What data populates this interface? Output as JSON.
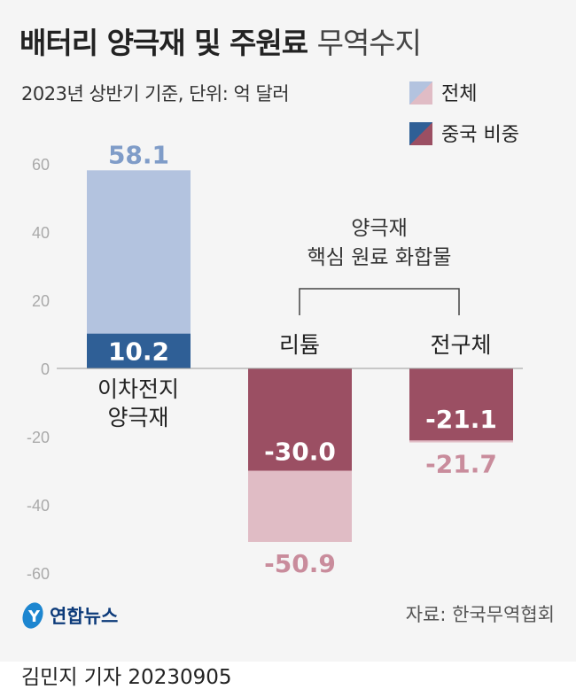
{
  "header": {
    "title_bold": "배터리 양극재 및 주원료",
    "title_light": "무역수지",
    "subtitle": "2023년 상반기 기준, 단위: 억 달러"
  },
  "legend": [
    {
      "label": "전체"
    },
    {
      "label": "중국 비중"
    }
  ],
  "colors": {
    "total_blue": "#b3c3df",
    "china_blue": "#2f5f96",
    "china_red": "#9b4f63",
    "total_red": "#e0bcc5",
    "label_blue": "#7f9cc8",
    "label_red": "#c98c9c"
  },
  "chart_data": {
    "type": "bar",
    "categories": [
      "이차전지\n양극재",
      "리튬",
      "전구체"
    ],
    "series": [
      {
        "name": "전체",
        "values": [
          58.1,
          -50.9,
          -21.7
        ]
      },
      {
        "name": "중국 비중",
        "values": [
          10.2,
          -30.0,
          -21.1
        ]
      }
    ],
    "data_labels": {
      "total": [
        "58.1",
        "-50.9",
        "-21.7"
      ],
      "china": [
        "10.2",
        "-30.0",
        "-21.1"
      ]
    },
    "group_annotation": [
      "양극재",
      "핵심 원료 화합물"
    ],
    "yticks": [
      "60",
      "40",
      "20",
      "0",
      "-20",
      "-40",
      "-60"
    ],
    "ylim": [
      -60,
      60
    ],
    "grid": false,
    "legend_position": "top-right"
  },
  "footer": {
    "logo": "연합뉴스",
    "source": "자료: 한국무역협회",
    "byline": "김민지 기자  20230905"
  }
}
